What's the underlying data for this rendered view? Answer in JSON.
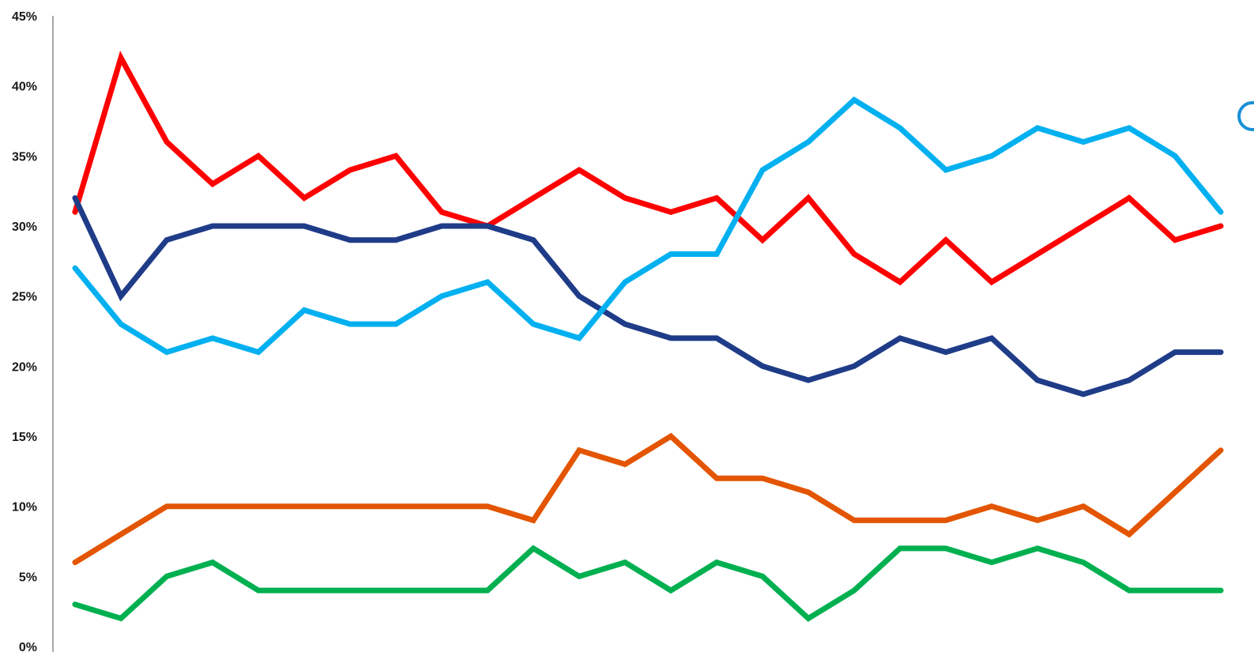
{
  "chart_data": {
    "type": "line",
    "title": "",
    "xlabel": "",
    "ylabel": "",
    "ylim": [
      0,
      45
    ],
    "y_ticks": [
      "0%",
      "5%",
      "10%",
      "15%",
      "20%",
      "25%",
      "30%",
      "35%",
      "40%",
      "45%"
    ],
    "x": [
      1,
      2,
      3,
      4,
      5,
      6,
      7,
      8,
      9,
      10,
      11,
      12,
      13,
      14,
      15,
      16,
      17,
      18,
      19,
      20,
      21,
      22,
      23,
      24,
      25,
      26
    ],
    "grid": false,
    "legend": "none",
    "series": [
      {
        "color": "#ff0000",
        "values": [
          31,
          42,
          36,
          33,
          35,
          32,
          34,
          35,
          31,
          30,
          32,
          34,
          32,
          31,
          32,
          29,
          32,
          28,
          26,
          29,
          26,
          28,
          30,
          32,
          29,
          30
        ]
      },
      {
        "color": "#1f3c88",
        "values": [
          32,
          25,
          29,
          30,
          30,
          30,
          29,
          29,
          30,
          30,
          29,
          25,
          23,
          22,
          22,
          20,
          19,
          20,
          22,
          21,
          22,
          19,
          18,
          19,
          21,
          21
        ]
      },
      {
        "color": "#00b0f0",
        "values": [
          27,
          23,
          21,
          22,
          21,
          24,
          23,
          23,
          25,
          26,
          23,
          22,
          26,
          28,
          28,
          34,
          36,
          39,
          37,
          34,
          35,
          37,
          36,
          37,
          35,
          31
        ]
      },
      {
        "color": "#e35500",
        "values": [
          6,
          8,
          10,
          10,
          10,
          10,
          10,
          10,
          10,
          10,
          9,
          14,
          13,
          15,
          12,
          12,
          11,
          9,
          9,
          9,
          10,
          9,
          10,
          8,
          11,
          14
        ]
      },
      {
        "color": "#00b050",
        "values": [
          3,
          2,
          5,
          6,
          4,
          4,
          4,
          4,
          4,
          4,
          7,
          5,
          6,
          4,
          6,
          5,
          2,
          4,
          7,
          7,
          6,
          7,
          6,
          4,
          4,
          4
        ]
      }
    ]
  }
}
